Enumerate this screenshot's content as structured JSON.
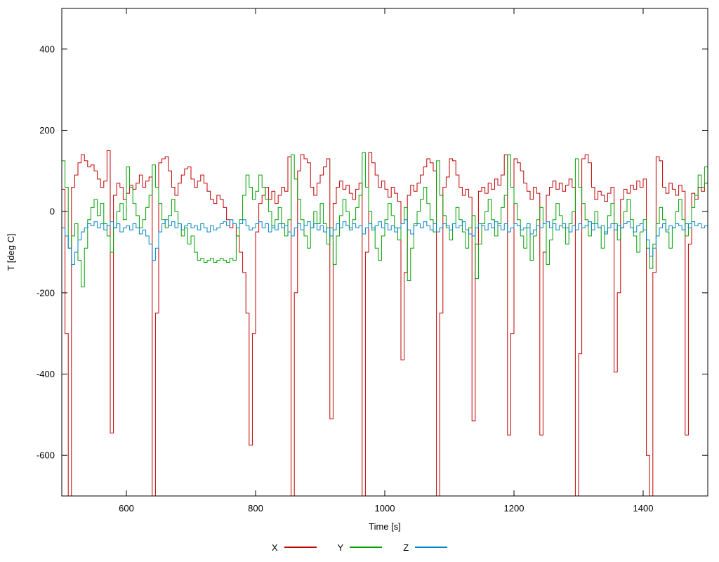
{
  "chart_data": {
    "type": "line",
    "style": "steps",
    "title": "",
    "xlabel": "Time [s]",
    "ylabel": "T [deg C]",
    "xlim": [
      500,
      1500
    ],
    "ylim": [
      -700,
      500
    ],
    "xticks": [
      600,
      800,
      1000,
      1200,
      1400
    ],
    "yticks": [
      -600,
      -400,
      -200,
      0,
      200,
      400
    ],
    "grid": false,
    "legend_position": "bottom-center",
    "x_start": 500,
    "x_step": 5,
    "n_points": 201,
    "note": "values of -700 are spikes clipped at the lower axis edge",
    "series": [
      {
        "name": "X",
        "color": "#c00000",
        "values": [
          55,
          -300,
          -700,
          60,
          90,
          120,
          140,
          125,
          110,
          115,
          100,
          80,
          60,
          75,
          150,
          -545,
          40,
          70,
          60,
          30,
          45,
          65,
          55,
          70,
          90,
          60,
          75,
          85,
          -700,
          -250,
          120,
          130,
          135,
          100,
          60,
          40,
          70,
          90,
          105,
          110,
          80,
          60,
          75,
          90,
          70,
          50,
          30,
          20,
          40,
          30,
          10,
          -20,
          -40,
          -30,
          -60,
          -100,
          -150,
          -250,
          -575,
          -300,
          -50,
          20,
          40,
          60,
          30,
          50,
          20,
          40,
          60,
          50,
          135,
          -700,
          -200,
          100,
          140,
          130,
          120,
          60,
          40,
          70,
          90,
          110,
          130,
          -510,
          20,
          60,
          75,
          55,
          65,
          45,
          30,
          55,
          70,
          -700,
          -100,
          145,
          120,
          90,
          60,
          75,
          55,
          35,
          60,
          45,
          25,
          -365,
          -150,
          40,
          65,
          50,
          70,
          90,
          110,
          130,
          120,
          100,
          -700,
          -250,
          60,
          85,
          130,
          125,
          90,
          60,
          40,
          55,
          35,
          -515,
          -80,
          50,
          60,
          45,
          70,
          55,
          80,
          65,
          90,
          140,
          -550,
          -300,
          130,
          120,
          100,
          70,
          50,
          30,
          60,
          45,
          -550,
          -100,
          40,
          60,
          75,
          55,
          70,
          50,
          65,
          80,
          60,
          -700,
          -350,
          130,
          140,
          120,
          60,
          30,
          50,
          40,
          25,
          45,
          60,
          -395,
          -200,
          30,
          55,
          45,
          65,
          55,
          75,
          60,
          80,
          -600,
          -700,
          -150,
          135,
          125,
          60,
          45,
          70,
          55,
          40,
          65,
          50,
          -550,
          -80,
          45,
          30,
          60,
          50,
          70,
          65
        ]
      },
      {
        "name": "Y",
        "color": "#00a000",
        "values": [
          125,
          60,
          -90,
          -60,
          -30,
          -120,
          -185,
          -90,
          -20,
          10,
          30,
          -10,
          20,
          -30,
          -60,
          -100,
          -40,
          0,
          20,
          -20,
          110,
          60,
          20,
          -10,
          -40,
          -20,
          10,
          40,
          115,
          60,
          20,
          -20,
          -40,
          -10,
          30,
          0,
          -30,
          -60,
          -40,
          -80,
          -60,
          -100,
          -120,
          -115,
          -125,
          -120,
          -115,
          -125,
          -120,
          -115,
          -120,
          -125,
          -115,
          -120,
          -60,
          -20,
          40,
          90,
          60,
          30,
          50,
          90,
          60,
          30,
          0,
          -40,
          -20,
          10,
          -30,
          -60,
          -20,
          140,
          80,
          30,
          -20,
          -60,
          -90,
          -40,
          0,
          -30,
          20,
          -30,
          -80,
          -40,
          -130,
          -60,
          -10,
          30,
          0,
          -40,
          -20,
          10,
          40,
          145,
          60,
          0,
          -40,
          -90,
          -120,
          -60,
          -20,
          20,
          -10,
          -40,
          -70,
          -30,
          10,
          -170,
          -90,
          -30,
          0,
          30,
          60,
          20,
          -20,
          -50,
          125,
          40,
          -10,
          -40,
          -70,
          -30,
          10,
          -20,
          -50,
          -90,
          -40,
          -10,
          -165,
          -80,
          -30,
          0,
          30,
          -20,
          -60,
          -30,
          10,
          40,
          140,
          60,
          20,
          -20,
          -60,
          -90,
          -40,
          -120,
          -60,
          -20,
          10,
          -30,
          -130,
          -70,
          -20,
          20,
          -10,
          -40,
          -80,
          -30,
          0,
          130,
          60,
          20,
          -20,
          -60,
          -30,
          0,
          -40,
          -90,
          -50,
          -10,
          20,
          -30,
          -70,
          -40,
          0,
          30,
          -20,
          -60,
          -100,
          -50,
          -20,
          -90,
          -140,
          -80,
          -30,
          10,
          -20,
          -50,
          -90,
          -40,
          0,
          30,
          -20,
          -60,
          -30,
          10,
          40,
          90,
          60,
          110,
          60
        ]
      },
      {
        "name": "Z",
        "color": "#0084c8",
        "values": [
          -40,
          -60,
          -90,
          -130,
          -100,
          -70,
          -50,
          -40,
          -30,
          -35,
          -25,
          -40,
          -30,
          -45,
          -35,
          -25,
          -40,
          -30,
          -50,
          -40,
          -35,
          -45,
          -30,
          -40,
          -55,
          -45,
          -60,
          -80,
          -120,
          -90,
          -50,
          -30,
          -20,
          -35,
          -25,
          -40,
          -30,
          -45,
          -35,
          -30,
          -40,
          -35,
          -45,
          -30,
          -40,
          -50,
          -35,
          -45,
          -40,
          -30,
          -25,
          -35,
          -20,
          -30,
          -40,
          -30,
          -20,
          -35,
          -45,
          -40,
          -30,
          -25,
          -40,
          -30,
          -50,
          -35,
          -45,
          -30,
          -40,
          -35,
          -50,
          -60,
          -40,
          -30,
          -45,
          -35,
          -25,
          -40,
          -30,
          -45,
          -35,
          -50,
          -40,
          -60,
          -45,
          -30,
          -40,
          -25,
          -35,
          -45,
          -30,
          -40,
          -35,
          -55,
          -40,
          -30,
          -45,
          -35,
          -25,
          -40,
          -30,
          -45,
          -35,
          -50,
          -40,
          -30,
          -20,
          -45,
          -55,
          -35,
          -30,
          -40,
          -25,
          -35,
          -45,
          -30,
          -50,
          -40,
          -30,
          -35,
          -45,
          -30,
          -40,
          -35,
          -25,
          -45,
          -55,
          -60,
          -40,
          -30,
          -35,
          -45,
          -30,
          -40,
          -25,
          -35,
          -45,
          -30,
          -50,
          -40,
          -30,
          -35,
          -45,
          -40,
          -30,
          -55,
          -45,
          -35,
          -40,
          -30,
          -25,
          -40,
          -30,
          -45,
          -35,
          -30,
          -40,
          -50,
          -35,
          -45,
          -30,
          -40,
          -35,
          -25,
          -45,
          -30,
          -40,
          -35,
          -55,
          -40,
          -30,
          -45,
          -35,
          -40,
          -30,
          -25,
          -40,
          -50,
          -35,
          -30,
          -45,
          -70,
          -110,
          -90,
          -60,
          -40,
          -30,
          -45,
          -35,
          -40,
          -30,
          -35,
          -45,
          -30,
          -40,
          -25,
          -35,
          -30,
          -40,
          -35,
          -30
        ]
      }
    ]
  }
}
